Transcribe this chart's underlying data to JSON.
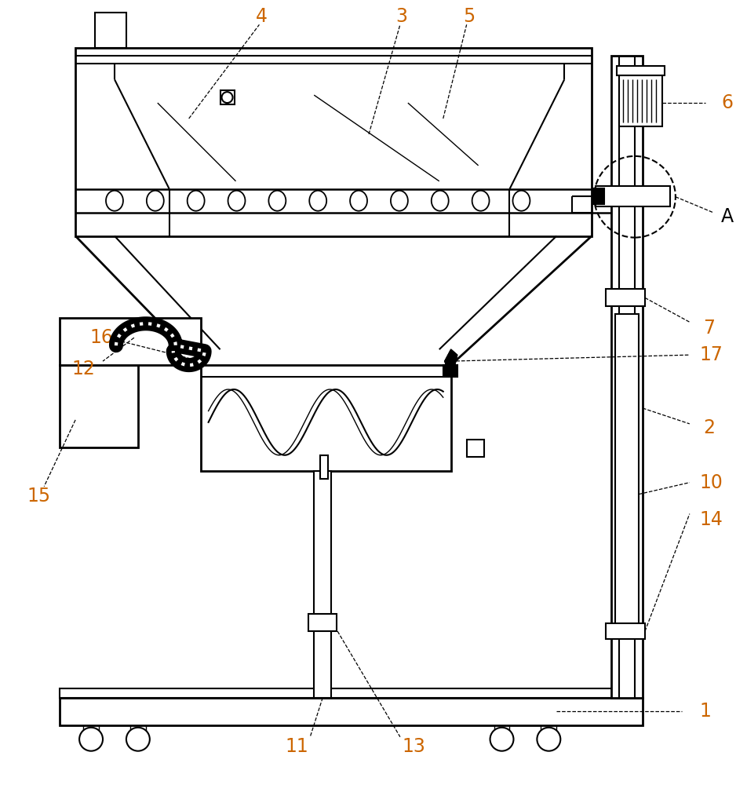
{
  "bg_color": "#ffffff",
  "line_color": "#000000",
  "fig_width": 9.52,
  "fig_height": 10.0,
  "number_color": "#CC6600",
  "black": "#000000"
}
